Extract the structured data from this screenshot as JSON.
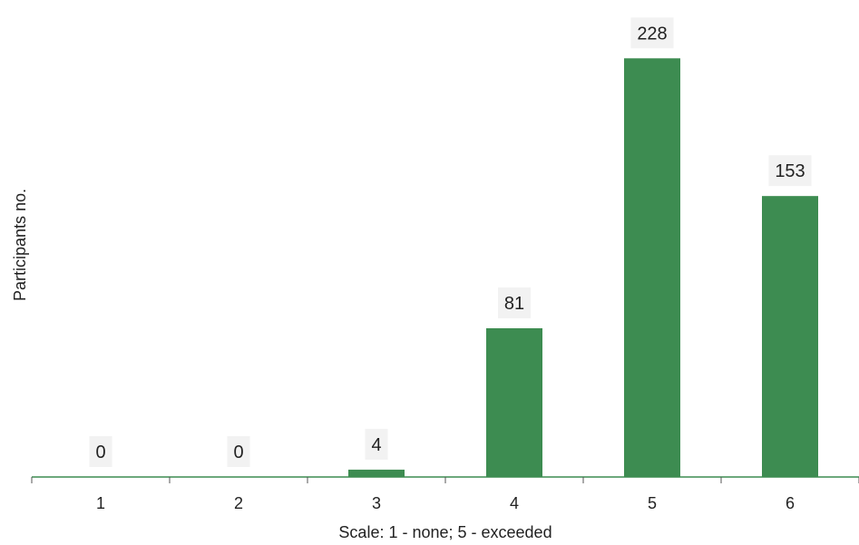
{
  "chart_data": {
    "type": "bar",
    "categories": [
      "1",
      "2",
      "3",
      "4",
      "5",
      "6"
    ],
    "values": [
      0,
      0,
      4,
      81,
      228,
      153
    ],
    "data_labels": [
      "0",
      "0",
      "4",
      "81",
      "228",
      "153"
    ],
    "xlabel": "Scale: 1 - none; 5 - exceeded",
    "ylabel": "Participants no.",
    "ylim": [
      0,
      240
    ],
    "grid": false,
    "bar_color": "#3d8c51",
    "label_bg_color": "#f2f2f2",
    "axis_color": "#3d8c51"
  }
}
